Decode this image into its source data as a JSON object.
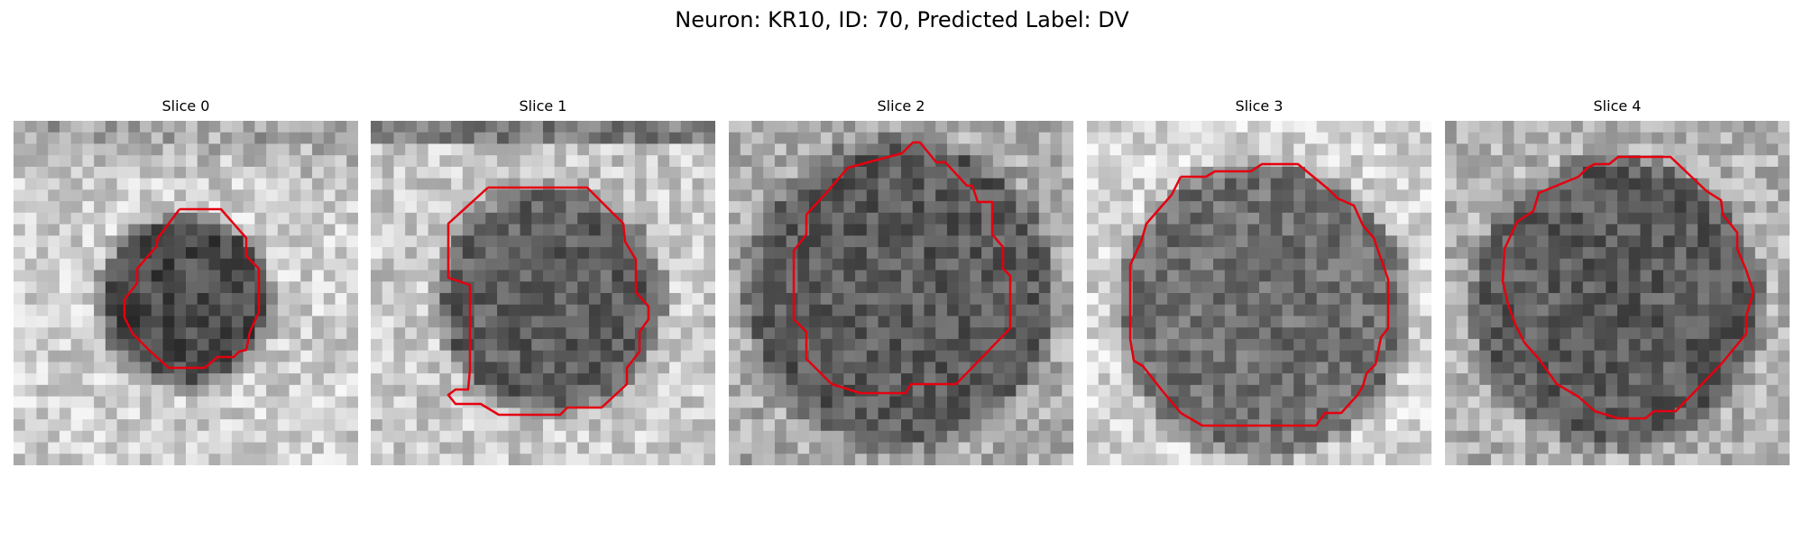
{
  "figure": {
    "title": "Neuron: KR10, ID: 70, Predicted Label: DV"
  },
  "overlay_color": "#e4000f",
  "panels": [
    {
      "title": "Slice 0",
      "content": "grayscale-microscopy-patch-with-red-neuron-outline"
    },
    {
      "title": "Slice 1",
      "content": "grayscale-microscopy-patch-with-red-neuron-outline"
    },
    {
      "title": "Slice 2",
      "content": "grayscale-microscopy-patch-with-red-neuron-outline"
    },
    {
      "title": "Slice 3",
      "content": "grayscale-microscopy-patch-with-red-neuron-outline"
    },
    {
      "title": "Slice 4",
      "content": "grayscale-microscopy-patch-with-red-neuron-outline"
    }
  ]
}
